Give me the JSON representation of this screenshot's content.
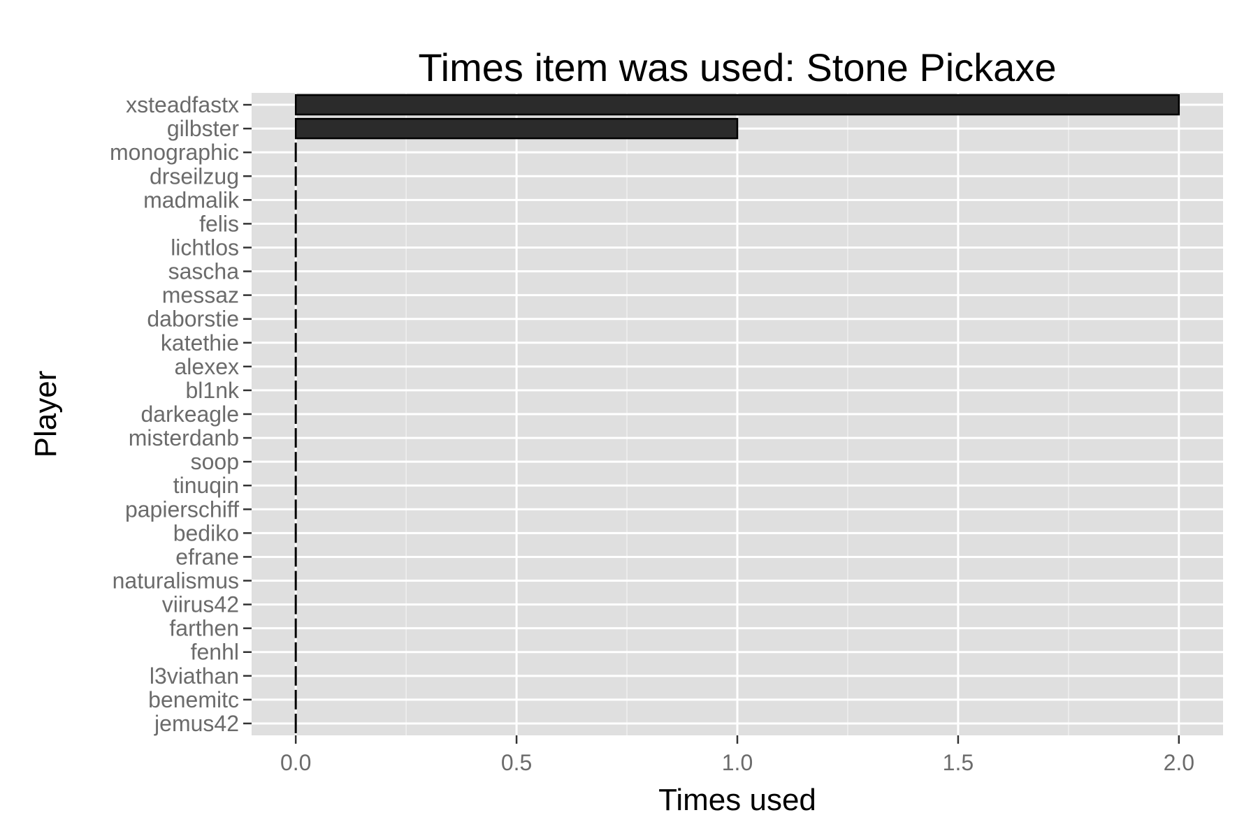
{
  "chart_data": {
    "type": "bar",
    "orientation": "horizontal",
    "title": "Times item was used: Stone Pickaxe",
    "xlabel": "Times used",
    "ylabel": "Player",
    "categories": [
      "xsteadfastx",
      "gilbster",
      "monographic",
      "drseilzug",
      "madmalik",
      "felis",
      "lichtlos",
      "sascha",
      "messaz",
      "daborstie",
      "katethie",
      "alexex",
      "bl1nk",
      "darkeagle",
      "misterdanb",
      "soop",
      "tinuqin",
      "papierschiff",
      "bediko",
      "efrane",
      "naturalismus",
      "viirus42",
      "farthen",
      "fenhl",
      "l3viathan",
      "benemitc",
      "jemus42"
    ],
    "values": [
      2,
      1,
      0,
      0,
      0,
      0,
      0,
      0,
      0,
      0,
      0,
      0,
      0,
      0,
      0,
      0,
      0,
      0,
      0,
      0,
      0,
      0,
      0,
      0,
      0,
      0,
      0
    ],
    "xlim": [
      -0.1,
      2.1
    ],
    "x_ticks": [
      0,
      0.5,
      1,
      1.5,
      2
    ],
    "x_tick_labels": [
      "0.0",
      "0.5",
      "1.0",
      "1.5",
      "2.0"
    ],
    "grid": true,
    "legend": "none",
    "colors": {
      "panel_background": "#dfdfdf",
      "grid_major": "#ffffff",
      "grid_minor": "#efefef",
      "bar_fill": "#2b2b2b",
      "bar_outline": "#000000",
      "tick_label": "#6b6b6b",
      "tick_mark": "#333333",
      "text": "#000000"
    }
  }
}
